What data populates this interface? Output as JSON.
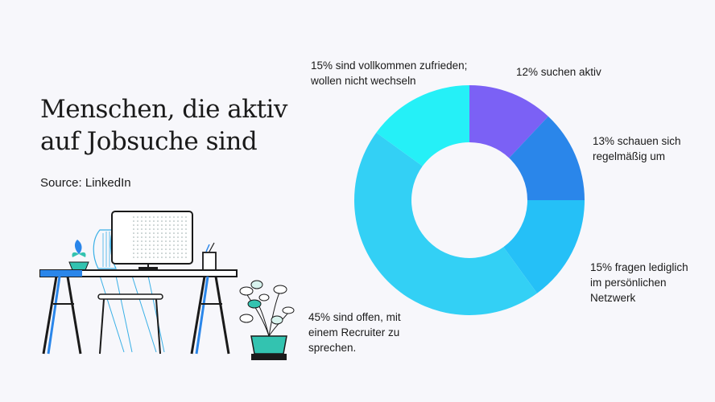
{
  "title_lines": [
    "Menschen, die aktiv",
    "auf Jobsuche sind"
  ],
  "source": "Source: LinkedIn",
  "chart_data": {
    "type": "pie",
    "variant": "donut",
    "title": "Menschen, die aktiv auf Jobsuche sind",
    "slices": [
      {
        "value": 12,
        "label": [
          "12% suchen aktiv"
        ],
        "color": "#7b61f5"
      },
      {
        "value": 13,
        "label": [
          "13% schauen sich",
          "regelmäßig um"
        ],
        "color": "#2a86ea"
      },
      {
        "value": 15,
        "label": [
          "15% fragen lediglich",
          "im persönlichen",
          "Netzwerk"
        ],
        "color": "#25c0f7"
      },
      {
        "value": 45,
        "label": [
          "45% sind offen, mit",
          "einem Recruiter zu",
          "sprechen."
        ],
        "color": "#33d0f5"
      },
      {
        "value": 15,
        "label": [
          "15% sind vollkommen zufrieden;",
          "wollen nicht wechseln"
        ],
        "color": "#25f0f7"
      }
    ]
  },
  "illustration": {
    "desk_color": "#1a1a1a",
    "accent_blue": "#2a86ea",
    "plant_teal": "#33c3b0"
  }
}
